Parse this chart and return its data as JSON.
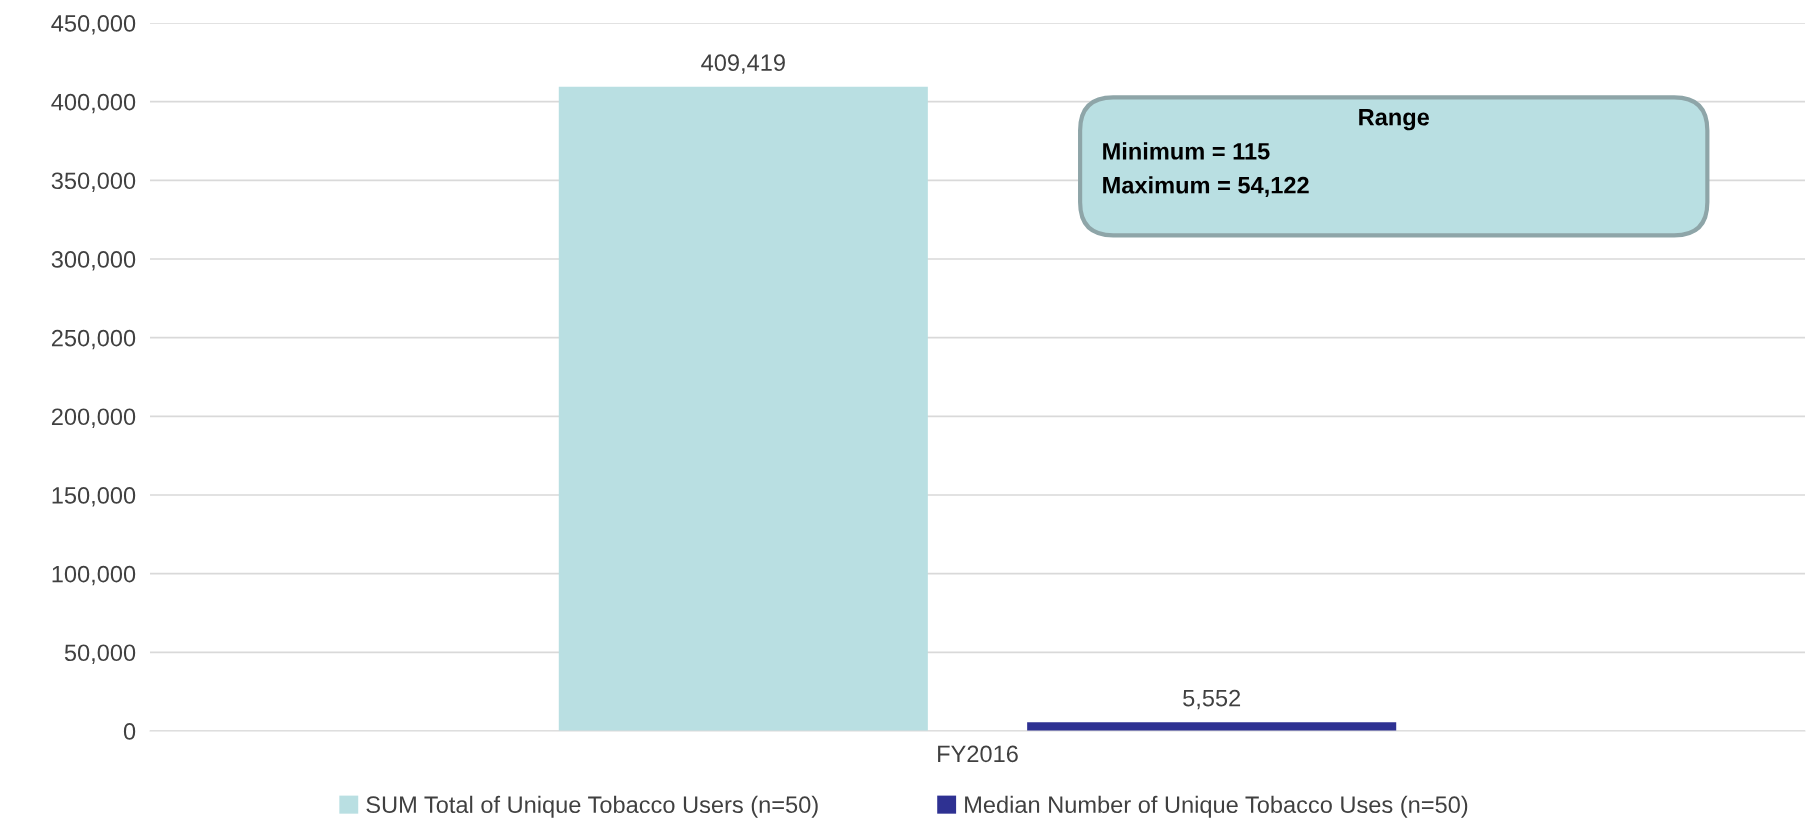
{
  "chart_data": {
    "type": "bar",
    "categories": [
      "FY2016"
    ],
    "series": [
      {
        "name": "SUM Total of Unique Tobacco Users (n=50)",
        "color": "#b9dfe2",
        "values": [
          409419
        ],
        "value_labels": [
          "409,419"
        ]
      },
      {
        "name": "Median Number of Unique Tobacco Uses (n=50)",
        "color": "#2e3192",
        "values": [
          5552
        ],
        "value_labels": [
          "5,552"
        ]
      }
    ],
    "ylim": [
      0,
      450000
    ],
    "yticks": [
      {
        "value": 0,
        "label": "0"
      },
      {
        "value": 50000,
        "label": "50,000"
      },
      {
        "value": 100000,
        "label": "100,000"
      },
      {
        "value": 150000,
        "label": "150,000"
      },
      {
        "value": 200000,
        "label": "200,000"
      },
      {
        "value": 250000,
        "label": "250,000"
      },
      {
        "value": 300000,
        "label": "300,000"
      },
      {
        "value": 350000,
        "label": "350,000"
      },
      {
        "value": 400000,
        "label": "400,000"
      },
      {
        "value": 450000,
        "label": "450,000"
      }
    ],
    "annotations": [
      "Range",
      "Minimum = 115",
      "Maximum = 54,122"
    ],
    "grid": "y",
    "legend": "bottom"
  }
}
